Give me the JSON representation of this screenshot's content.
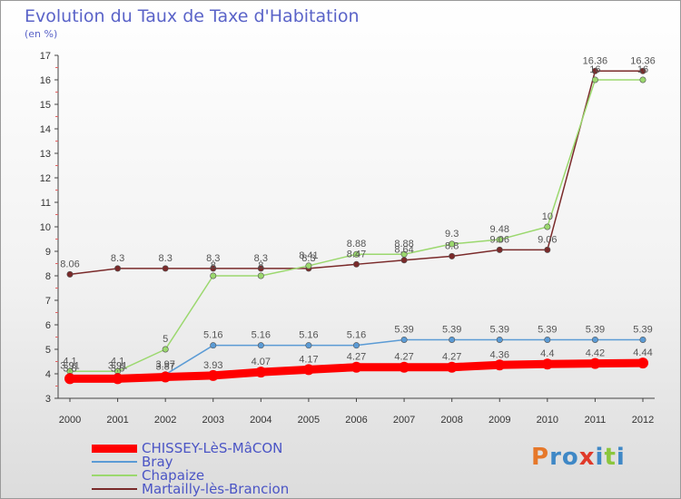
{
  "title": "Evolution du Taux de Taxe d'Habitation",
  "unit": "(en %)",
  "logo": {
    "text": "Proxiti",
    "colors": [
      "#e6782a",
      "#3f88c6",
      "#3f88c6",
      "#e03a2a",
      "#3f88c6",
      "#8bc63d",
      "#3f88c6"
    ]
  },
  "chart_data": {
    "type": "line",
    "title": "Evolution du Taux de Taxe d'Habitation",
    "ylabel": "(en %)",
    "x": [
      "2000",
      "2001",
      "2002",
      "2003",
      "2004",
      "2005",
      "2006",
      "2007",
      "2008",
      "2009",
      "2010",
      "2011",
      "2012"
    ],
    "ylim": [
      3,
      17
    ],
    "yticks": [
      3,
      4,
      5,
      6,
      7,
      8,
      9,
      10,
      11,
      12,
      13,
      14,
      15,
      16,
      17
    ],
    "grid": false,
    "legend_position": "bottom-left",
    "series": [
      {
        "name": "CHISSEY-LèS-MâCON",
        "color": "#ff0000",
        "width": 9,
        "values": [
          3.8,
          3.8,
          3.87,
          3.93,
          4.07,
          4.17,
          4.27,
          4.27,
          4.27,
          4.36,
          4.4,
          4.42,
          4.44
        ],
        "labels": [
          "3.8",
          "3.8",
          "3.87",
          "3.93",
          "4.07",
          "4.17",
          "4.27",
          "4.27",
          "4.27",
          "4.36",
          "4.4",
          "4.42",
          "4.44"
        ]
      },
      {
        "name": "Bray",
        "color": "#5b9bd5",
        "width": 1.5,
        "values": [
          3.91,
          3.91,
          3.97,
          5.16,
          5.16,
          5.16,
          5.16,
          5.39,
          5.39,
          5.39,
          5.39,
          5.39,
          5.39
        ],
        "labels": [
          "3.91",
          "3.91",
          "3.97",
          "5.16",
          "5.16",
          "5.16",
          "5.16",
          "5.39",
          "5.39",
          "5.39",
          "5.39",
          "5.39",
          "5.39"
        ]
      },
      {
        "name": "Chapaize",
        "color": "#9bd86e",
        "width": 1.5,
        "values": [
          4.1,
          4.1,
          5,
          8,
          8,
          8.41,
          8.88,
          8.88,
          9.3,
          9.48,
          10,
          16,
          16
        ],
        "labels": [
          "4.1",
          "4.1",
          "5",
          "8",
          "8",
          "8.41",
          "8.88",
          "8.88",
          "9.3",
          "9.48",
          "10",
          "16",
          "16"
        ]
      },
      {
        "name": "Martailly-lès-Brancion",
        "color": "#7a2a2a",
        "width": 1.5,
        "values": [
          8.06,
          8.3,
          8.3,
          8.3,
          8.3,
          8.3,
          8.47,
          8.64,
          8.8,
          9.06,
          9.06,
          16.36,
          16.36
        ],
        "labels": [
          "8.06",
          "8.3",
          "8.3",
          "8.3",
          "8.3",
          "8.3",
          "8.47",
          "8.64",
          "8.8",
          "9.06",
          "9.06",
          "16.36",
          "16.36"
        ]
      }
    ]
  }
}
